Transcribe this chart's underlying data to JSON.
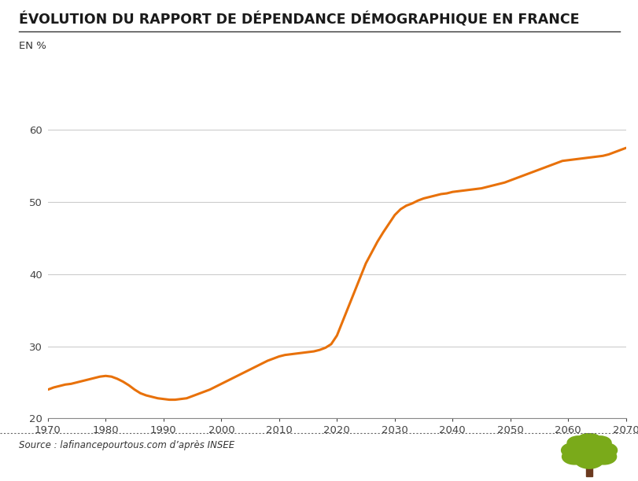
{
  "title": "ÉVOLUTION DU RAPPORT DE DÉPENDANCE DÉMOGRAPHIQUE EN FRANCE",
  "ylabel": "EN %",
  "source": "Source : lafinancepourtous.com d’après INSEE",
  "line_color": "#E8710A",
  "line_width": 2.2,
  "background_color": "#FFFFFF",
  "xlim": [
    1970,
    2070
  ],
  "ylim": [
    20,
    62
  ],
  "yticks": [
    20,
    30,
    40,
    50,
    60
  ],
  "xticks": [
    1970,
    1980,
    1990,
    2000,
    2010,
    2020,
    2030,
    2040,
    2050,
    2060,
    2070
  ],
  "grid_color": "#CCCCCC",
  "x": [
    1970,
    1971,
    1972,
    1973,
    1974,
    1975,
    1976,
    1977,
    1978,
    1979,
    1980,
    1981,
    1982,
    1983,
    1984,
    1985,
    1986,
    1987,
    1988,
    1989,
    1990,
    1991,
    1992,
    1993,
    1994,
    1995,
    1996,
    1997,
    1998,
    1999,
    2000,
    2001,
    2002,
    2003,
    2004,
    2005,
    2006,
    2007,
    2008,
    2009,
    2010,
    2011,
    2012,
    2013,
    2014,
    2015,
    2016,
    2017,
    2018,
    2019,
    2020,
    2021,
    2022,
    2023,
    2024,
    2025,
    2026,
    2027,
    2028,
    2029,
    2030,
    2031,
    2032,
    2033,
    2034,
    2035,
    2036,
    2037,
    2038,
    2039,
    2040,
    2041,
    2042,
    2043,
    2044,
    2045,
    2046,
    2047,
    2048,
    2049,
    2050,
    2051,
    2052,
    2053,
    2054,
    2055,
    2056,
    2057,
    2058,
    2059,
    2060,
    2061,
    2062,
    2063,
    2064,
    2065,
    2066,
    2067,
    2068,
    2069,
    2070
  ],
  "y": [
    24.0,
    24.3,
    24.5,
    24.7,
    24.8,
    25.0,
    25.2,
    25.4,
    25.6,
    25.8,
    25.9,
    25.8,
    25.5,
    25.1,
    24.6,
    24.0,
    23.5,
    23.2,
    23.0,
    22.8,
    22.7,
    22.6,
    22.6,
    22.7,
    22.8,
    23.1,
    23.4,
    23.7,
    24.0,
    24.4,
    24.8,
    25.2,
    25.6,
    26.0,
    26.4,
    26.8,
    27.2,
    27.6,
    28.0,
    28.3,
    28.6,
    28.8,
    28.9,
    29.0,
    29.1,
    29.2,
    29.3,
    29.5,
    29.8,
    30.3,
    31.5,
    33.5,
    35.5,
    37.5,
    39.5,
    41.5,
    43.0,
    44.5,
    45.8,
    47.0,
    48.2,
    49.0,
    49.5,
    49.8,
    50.2,
    50.5,
    50.7,
    50.9,
    51.1,
    51.2,
    51.4,
    51.5,
    51.6,
    51.7,
    51.8,
    51.9,
    52.1,
    52.3,
    52.5,
    52.7,
    53.0,
    53.3,
    53.6,
    53.9,
    54.2,
    54.5,
    54.8,
    55.1,
    55.4,
    55.7,
    55.8,
    55.9,
    56.0,
    56.1,
    56.2,
    56.3,
    56.4,
    56.6,
    56.9,
    57.2,
    57.5
  ],
  "tree_color": "#7aaa1a",
  "trunk_color": "#6b3a1f"
}
